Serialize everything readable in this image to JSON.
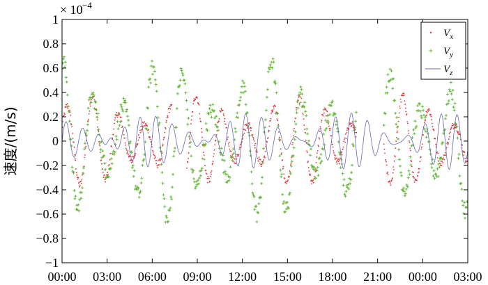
{
  "chart_data": {
    "type": "scatter",
    "ylabel": "速度/(m/s)",
    "y_multiplier": "× 10",
    "y_multiplier_exponent": "−4",
    "ylim": [
      -1,
      1
    ],
    "y_ticks": [
      -1,
      -0.8,
      -0.6,
      -0.4,
      -0.2,
      0,
      0.2,
      0.4,
      0.6,
      0.8,
      1
    ],
    "y_tick_labels": [
      "−1",
      "−0.8",
      "−0.6",
      "−0.4",
      "−0.2",
      "0",
      "0.2",
      "0.4",
      "0.6",
      "0.8",
      "1"
    ],
    "x_tick_labels": [
      "00:00",
      "03:00",
      "06:00",
      "09:00",
      "12:00",
      "15:00",
      "18:00",
      "21:00",
      "00:00",
      "03:00"
    ],
    "xlim_hours": [
      0,
      27
    ],
    "legend_position": "top-right",
    "grid": false,
    "series": [
      {
        "name": "V_x",
        "legend_label": "V",
        "legend_sub": "x",
        "marker": "dot",
        "color": "#e03030",
        "period_h": 1.72,
        "amplitude": 0.34,
        "phase": 0.4,
        "gaps": [
          [
            7.3,
            8.3
          ],
          [
            19.6,
            21.4
          ]
        ]
      },
      {
        "name": "V_y",
        "legend_label": "V",
        "legend_sub": "y",
        "marker": "plus",
        "color": "#66b83a",
        "period_h": 1.98,
        "amplitude": 0.6,
        "phase": 1.3,
        "gaps": [
          [
            19.6,
            21.4
          ]
        ]
      },
      {
        "name": "V_z",
        "legend_label": "V",
        "legend_sub": "z",
        "marker": "line",
        "color": "#6666bb",
        "period_h": 1.0,
        "amplitude": 0.14,
        "phase": 0.0,
        "gaps": []
      }
    ]
  }
}
